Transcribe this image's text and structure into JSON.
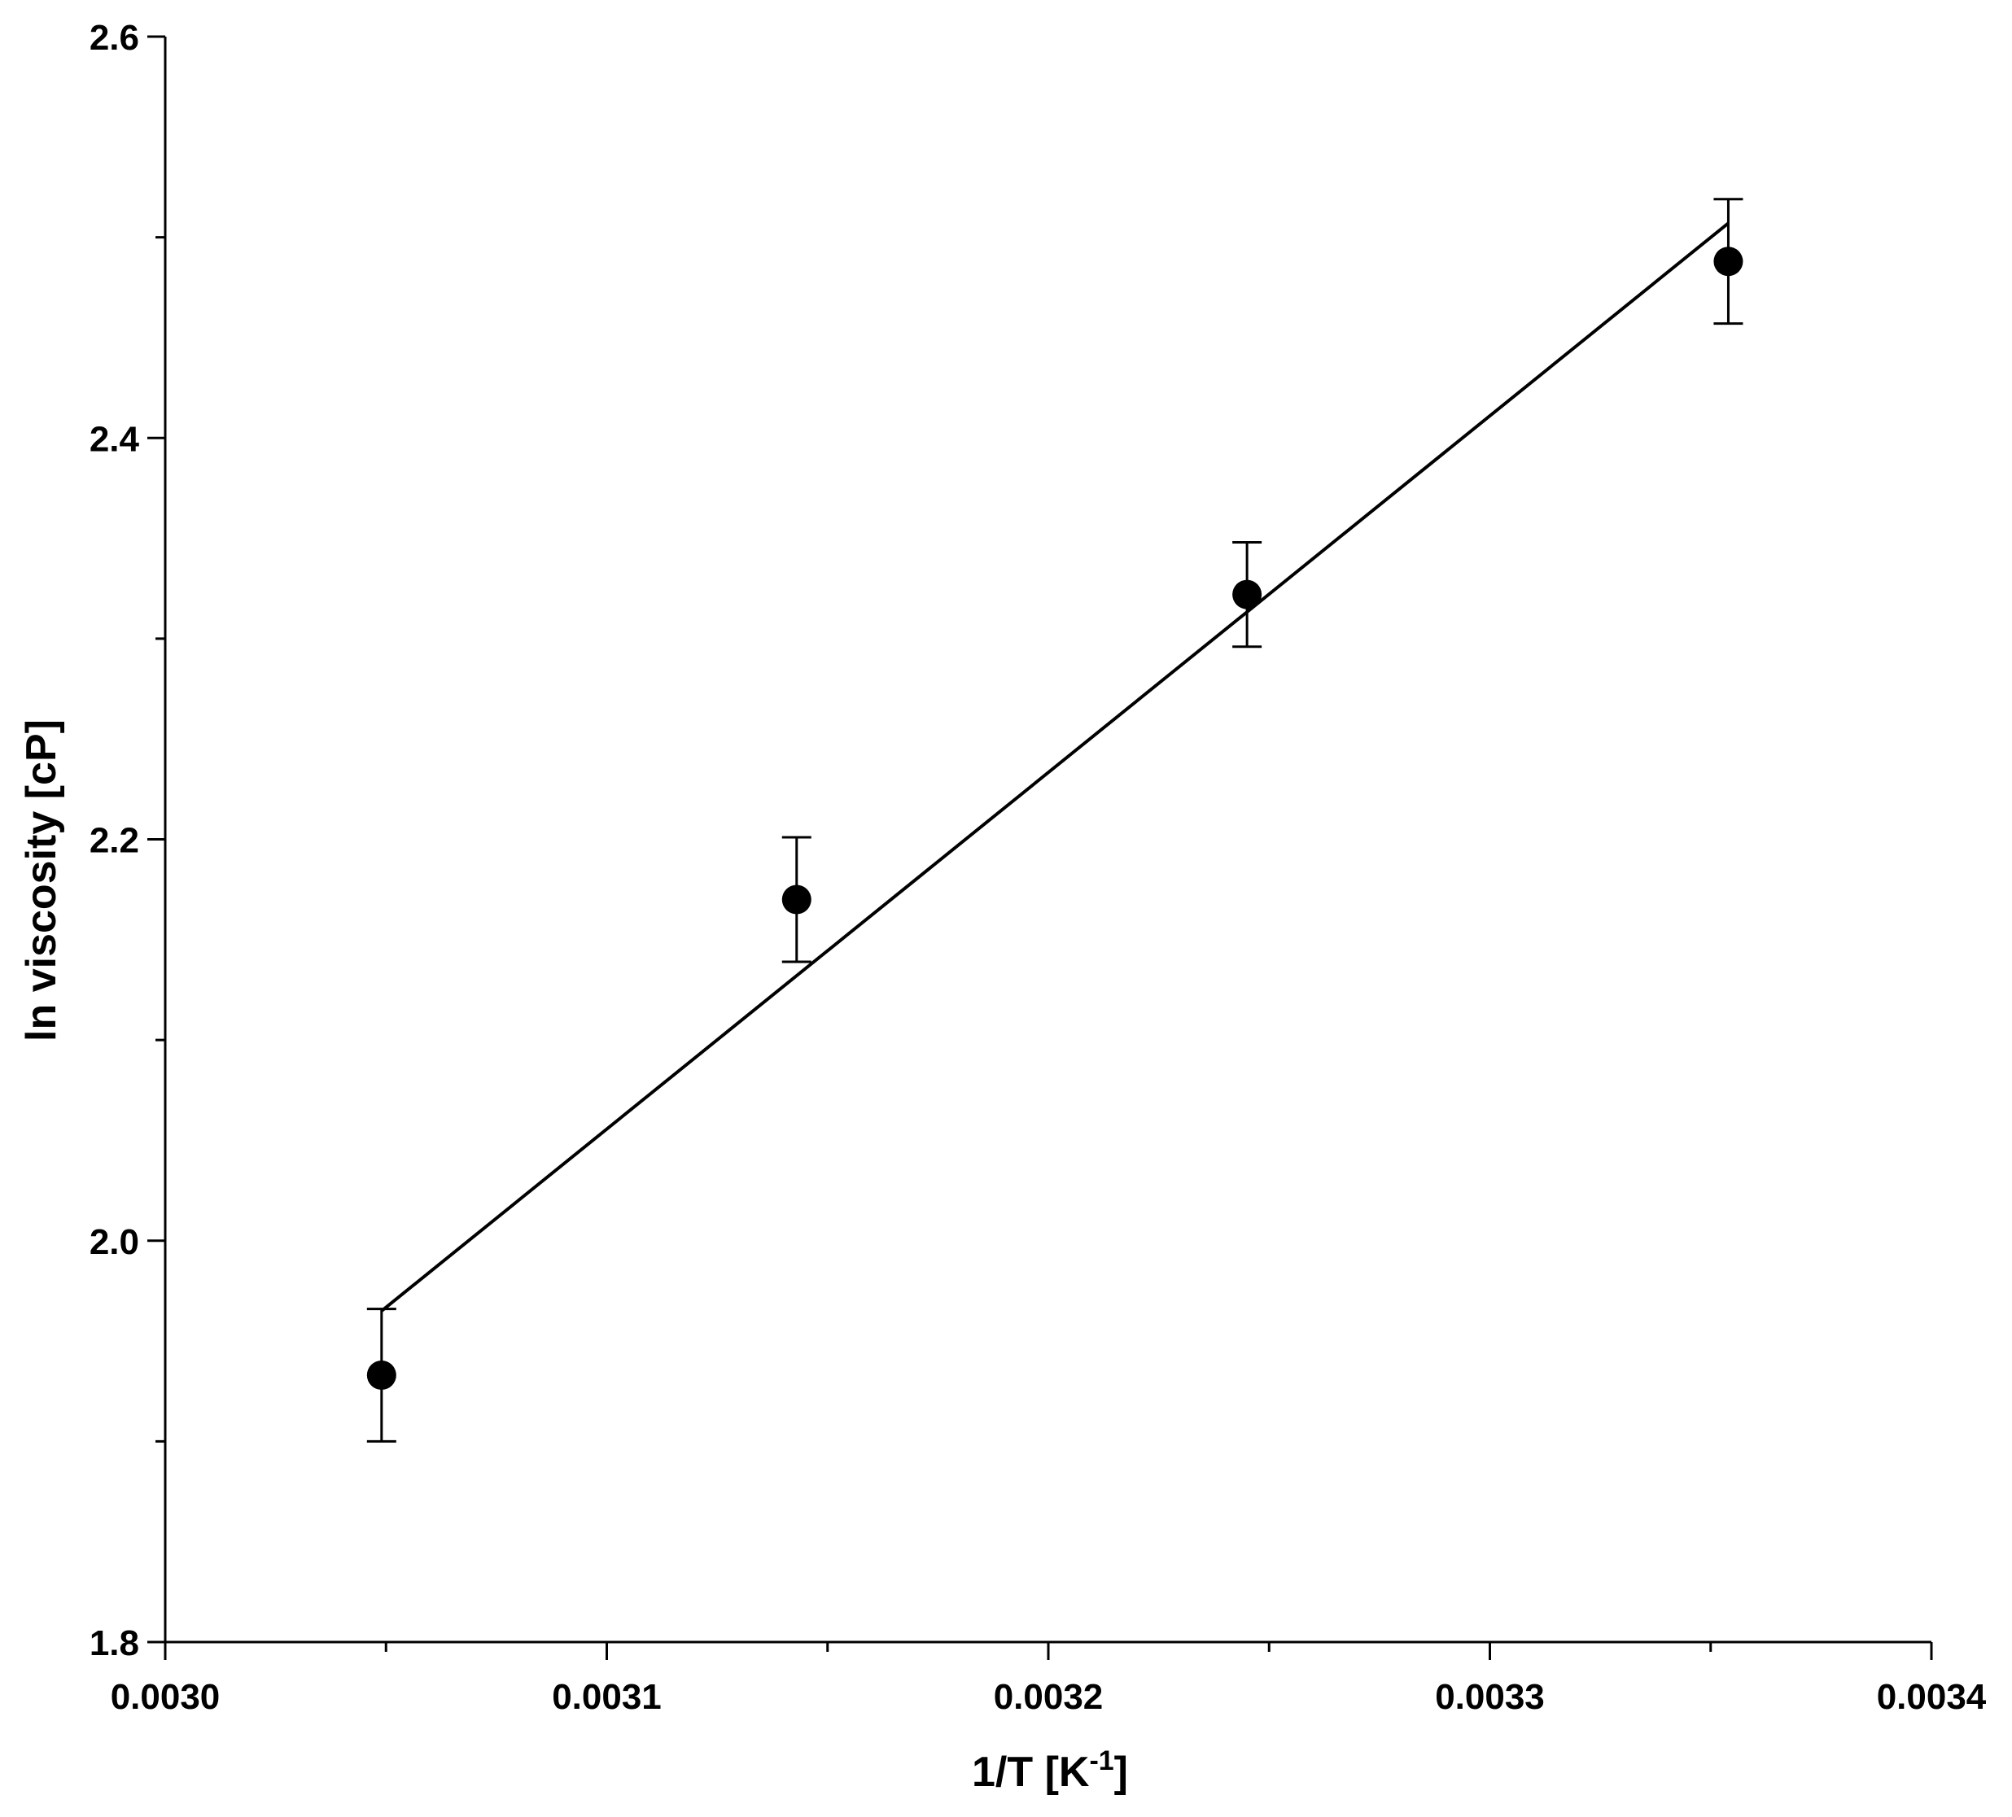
{
  "chart_data": {
    "type": "scatter",
    "xlabel": {
      "prefix": "1/T [K",
      "sup": "-1",
      "suffix": "]"
    },
    "ylabel": "ln viscosity [cP]",
    "xlim": [
      0.003,
      0.0034
    ],
    "ylim": [
      1.8,
      2.6
    ],
    "x_ticks": [
      0.003,
      0.0031,
      0.0032,
      0.0033,
      0.0034
    ],
    "x_tick_labels": [
      "0.0030",
      "0.0031",
      "0.0032",
      "0.0033",
      "0.0034"
    ],
    "x_minor_ticks": [
      0.00305,
      0.00315,
      0.00325,
      0.00335
    ],
    "y_ticks": [
      1.8,
      2.0,
      2.2,
      2.4,
      2.6
    ],
    "y_tick_labels": [
      "1.8",
      "2.0",
      "2.2",
      "2.4",
      "2.6"
    ],
    "y_minor_ticks": [
      1.9,
      2.1,
      2.3,
      2.5
    ],
    "grid": false,
    "marker_color": "#000000",
    "points": [
      {
        "x": 0.003049,
        "y": 1.933,
        "err": 0.033
      },
      {
        "x": 0.003143,
        "y": 2.17,
        "err": 0.031
      },
      {
        "x": 0.003245,
        "y": 2.322,
        "err": 0.026
      },
      {
        "x": 0.003354,
        "y": 2.488,
        "err": 0.031
      }
    ],
    "fit_line": {
      "x": [
        0.003049,
        0.003354
      ],
      "y": [
        1.965,
        2.507
      ]
    }
  }
}
